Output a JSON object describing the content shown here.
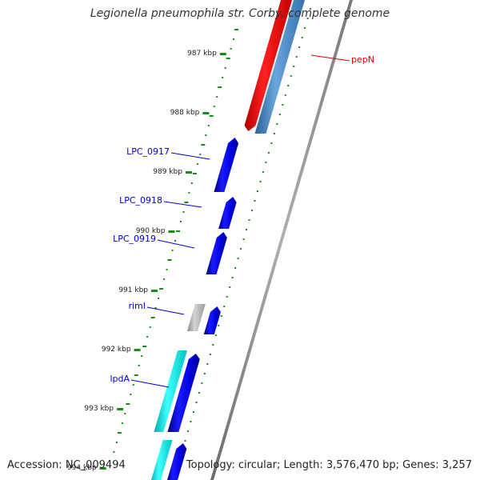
{
  "title": "Legionella pneumophila str. Corby, complete genome",
  "footer": {
    "accession": "Accession: NC_009494",
    "summary": "Topology: circular; Length: 3,576,470 bp; Genes: 3,257"
  },
  "ticks": [
    {
      "label": "987 kbp"
    },
    {
      "label": "988 kbp"
    },
    {
      "label": "989 kbp"
    },
    {
      "label": "990 kbp"
    },
    {
      "label": "991 kbp"
    },
    {
      "label": "992 kbp"
    },
    {
      "label": "993 kbp"
    },
    {
      "label": "994 kbp"
    }
  ],
  "gene_labels": [
    {
      "label": "pepN",
      "color": "#e00000"
    },
    {
      "label": "LPC_0917",
      "color": "#0000cc"
    },
    {
      "label": "LPC_0918",
      "color": "#0000cc"
    },
    {
      "label": "LPC_0919",
      "color": "#0000cc"
    },
    {
      "label": "rimI",
      "color": "#0000cc"
    },
    {
      "label": "lpdA",
      "color": "#0000cc"
    }
  ],
  "colors": {
    "cds": "#0a0adc",
    "red_feature": "#ee1111",
    "steel_feature": "#4a86c0",
    "cyan_feature": "#22e4e4",
    "gray_feature": "#a8a8a8",
    "backbone": "#888888",
    "tick_green": "#1a8a1a"
  }
}
